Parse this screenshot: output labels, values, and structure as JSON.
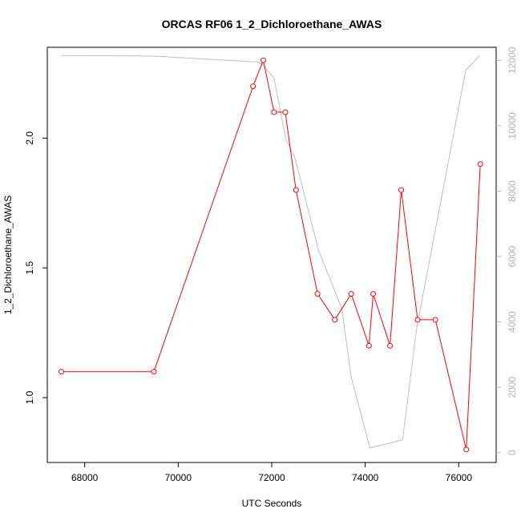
{
  "chart_data": {
    "type": "line",
    "title": "ORCAS RF06 1_2_Dichloroethane_AWAS",
    "xlabel": "UTC Seconds",
    "ylabel": "1_2_Dichloroethane_AWAS",
    "xlim": [
      67200,
      76800
    ],
    "ylim": [
      0.75,
      2.35
    ],
    "y2lim": [
      -300,
      12400
    ],
    "x_ticks": [
      68000,
      70000,
      72000,
      74000,
      76000
    ],
    "y_ticks": [
      1.0,
      1.5,
      2.0
    ],
    "y2_ticks": [
      0,
      2000,
      4000,
      6000,
      8000,
      10000,
      12000
    ],
    "grid": false,
    "series": [
      {
        "color": "#ff0000",
        "marker": "circle",
        "x": [
          67500,
          69480,
          71600,
          71820,
          72050,
          72290,
          72520,
          72980,
          73350,
          73700,
          74080,
          74170,
          74530,
          74770,
          75120,
          75500,
          76160,
          76460
        ],
        "y": [
          1.1,
          1.1,
          2.2,
          2.3,
          2.1,
          2.1,
          1.8,
          1.4,
          1.3,
          1.4,
          1.2,
          1.4,
          1.2,
          1.8,
          1.3,
          1.3,
          0.8,
          1.9
        ]
      },
      {
        "color": "#bebebe",
        "axis": "right",
        "x": [
          67500,
          69500,
          71700,
          71820,
          72050,
          72300,
          72500,
          73000,
          73500,
          73700,
          74100,
          74550,
          74800,
          75100,
          76150,
          76450
        ],
        "y": [
          12150,
          12130,
          11950,
          11850,
          11450,
          9600,
          9000,
          6200,
          4400,
          2300,
          150,
          300,
          400,
          3800,
          11700,
          12150
        ]
      }
    ]
  }
}
